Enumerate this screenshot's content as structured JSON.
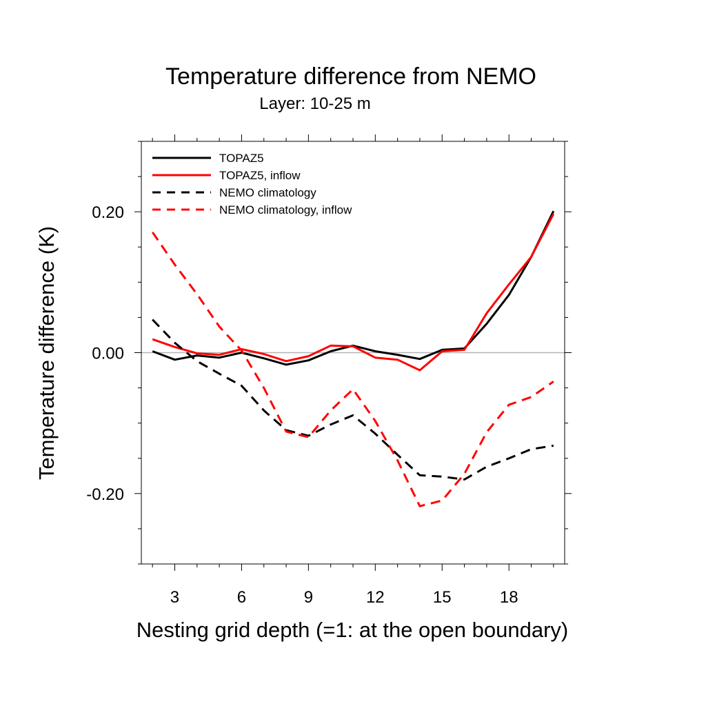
{
  "chart_data": {
    "type": "line",
    "title": "Temperature difference from NEMO",
    "subtitle": "Layer: 10-25 m",
    "xlabel": "Nesting grid depth (=1: at the open boundary)",
    "ylabel": "Temperature difference (K)",
    "xlim": [
      1.5,
      20.5
    ],
    "ylim": [
      -0.3,
      0.3
    ],
    "x_ticks": [
      3,
      6,
      9,
      12,
      15,
      18
    ],
    "x_tick_labels": [
      "3",
      "6",
      "9",
      "12",
      "15",
      "18"
    ],
    "y_ticks": [
      0.2,
      0.0,
      -0.2
    ],
    "y_tick_labels": [
      "0.20",
      "0.00",
      "-0.20"
    ],
    "reference_line": 0.0,
    "legend_position": "top-left",
    "x": [
      2,
      3,
      4,
      5,
      6,
      7,
      8,
      9,
      10,
      11,
      12,
      13,
      14,
      15,
      16,
      17,
      18,
      19,
      20
    ],
    "series": [
      {
        "name": "TOPAZ5",
        "color": "#000000",
        "dash": "solid",
        "values": [
          0.002,
          -0.01,
          -0.004,
          -0.007,
          0.0,
          -0.008,
          -0.017,
          -0.011,
          0.002,
          0.01,
          0.002,
          -0.003,
          -0.009,
          0.004,
          0.006,
          0.041,
          0.082,
          0.136,
          0.201
        ]
      },
      {
        "name": "TOPAZ5, inflow",
        "color": "#ff0000",
        "dash": "solid",
        "values": [
          0.019,
          0.008,
          -0.001,
          -0.003,
          0.005,
          -0.002,
          -0.012,
          -0.005,
          0.01,
          0.009,
          -0.007,
          -0.01,
          -0.025,
          0.002,
          0.004,
          0.056,
          0.097,
          0.136,
          0.197
        ]
      },
      {
        "name": "NEMO climatology",
        "color": "#000000",
        "dash": "dashed",
        "values": [
          0.047,
          0.014,
          -0.012,
          -0.03,
          -0.047,
          -0.082,
          -0.11,
          -0.118,
          -0.102,
          -0.089,
          -0.115,
          -0.145,
          -0.174,
          -0.176,
          -0.18,
          -0.162,
          -0.15,
          -0.137,
          -0.132
        ]
      },
      {
        "name": "NEMO climatology, inflow",
        "color": "#ff0000",
        "dash": "dashed",
        "values": [
          0.171,
          0.125,
          0.083,
          0.037,
          0.003,
          -0.05,
          -0.112,
          -0.12,
          -0.082,
          -0.052,
          -0.097,
          -0.153,
          -0.218,
          -0.21,
          -0.172,
          -0.113,
          -0.074,
          -0.063,
          -0.041
        ]
      }
    ]
  }
}
